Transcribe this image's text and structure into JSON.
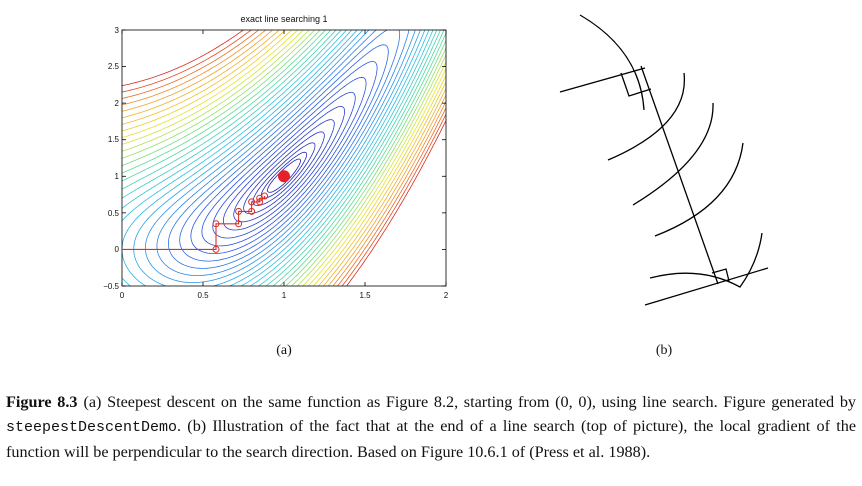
{
  "panel_a": {
    "label": "(a)",
    "chart_data": {
      "type": "contour",
      "title": "exact line searching 1",
      "xlim": [
        0,
        2
      ],
      "ylim": [
        -0.5,
        3
      ],
      "x_ticks": [
        "0",
        "0.5",
        "1",
        "1.5",
        "2"
      ],
      "y_ticks": [
        "−0.5",
        "0",
        "0.5",
        "1",
        "1.5",
        "2",
        "2.5",
        "3"
      ],
      "optimum": {
        "x": 1.0,
        "y": 1.0,
        "color": "#e8202a"
      },
      "path": {
        "color": "#d8302a",
        "points": [
          [
            0,
            0
          ],
          [
            0.58,
            0
          ],
          [
            0.58,
            0.35
          ],
          [
            0.72,
            0.35
          ],
          [
            0.72,
            0.52
          ],
          [
            0.8,
            0.52
          ],
          [
            0.8,
            0.65
          ],
          [
            0.85,
            0.65
          ],
          [
            0.85,
            0.7
          ],
          [
            0.88,
            0.7
          ],
          [
            0.88,
            0.73
          ]
        ],
        "markers": [
          [
            0.58,
            0
          ],
          [
            0.58,
            0.35
          ],
          [
            0.72,
            0.35
          ],
          [
            0.72,
            0.52
          ],
          [
            0.8,
            0.52
          ],
          [
            0.8,
            0.65
          ],
          [
            0.85,
            0.65
          ],
          [
            0.85,
            0.7
          ],
          [
            0.88,
            0.73
          ]
        ]
      }
    }
  },
  "panel_b": {
    "label": "(b)"
  },
  "caption": {
    "label": "Figure 8.3",
    "part1": "(a) Steepest descent on the same function as Figure 8.2, starting from (0, 0), using line search. Figure generated by ",
    "code": "steepestDescentDemo",
    "part2": ". (b) Illustration of the fact that at the end of a line search (top of picture), the local gradient of the function will be perpendicular to the search direction. Based on Figure 10.6.1 of (Press et al. 1988)."
  }
}
